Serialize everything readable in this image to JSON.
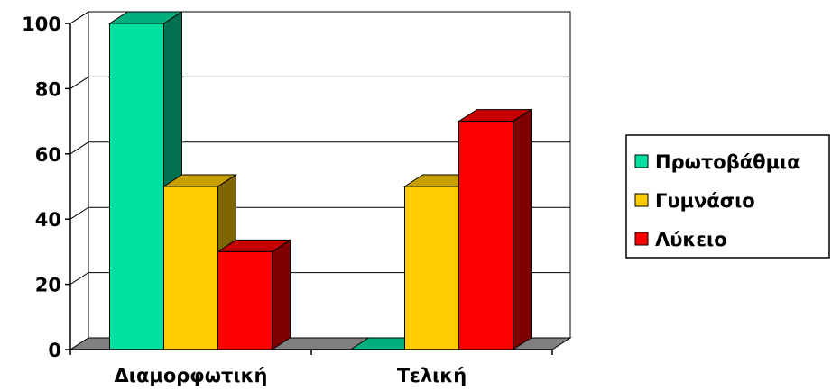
{
  "chart_data": {
    "type": "bar",
    "categories": [
      "Διαμορφωτική",
      "Τελική"
    ],
    "series": [
      {
        "name": "Πρωτοβάθμια",
        "values": [
          100,
          0
        ],
        "color": "#00E0A0"
      },
      {
        "name": "Γυμνάσιο",
        "values": [
          50,
          50
        ],
        "color": "#FFCC00"
      },
      {
        "name": "Λύκειο",
        "values": [
          30,
          70
        ],
        "color": "#FF0000"
      }
    ],
    "yticks": [
      "0",
      "20",
      "40",
      "60",
      "80",
      "100"
    ],
    "ylim": [
      0,
      100
    ],
    "grid": true,
    "three_d": true,
    "legend_position": "right",
    "title": "",
    "xlabel": "",
    "ylabel": ""
  }
}
